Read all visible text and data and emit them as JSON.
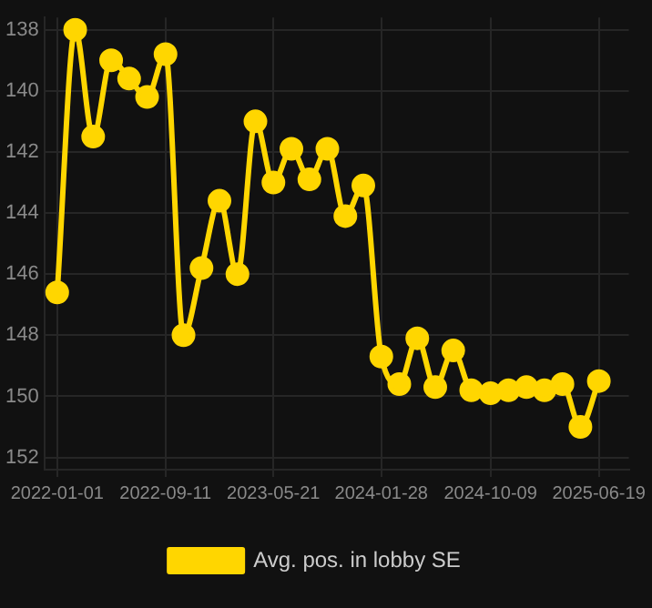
{
  "chart_data": {
    "type": "line",
    "x": [
      "2022-01-01",
      "2022-02-12",
      "2022-03-26",
      "2022-05-07",
      "2022-06-18",
      "2022-07-30",
      "2022-09-11",
      "2022-10-23",
      "2022-12-04",
      "2023-01-15",
      "2023-02-26",
      "2023-04-09",
      "2023-05-21",
      "2023-07-02",
      "2023-08-13",
      "2023-09-24",
      "2023-11-05",
      "2023-12-17",
      "2024-01-28",
      "2024-03-10",
      "2024-04-21",
      "2024-06-02",
      "2024-07-14",
      "2024-08-25",
      "2024-10-09",
      "2024-11-20",
      "2025-01-01",
      "2025-02-12",
      "2025-03-26",
      "2025-05-07",
      "2025-06-19"
    ],
    "series": [
      {
        "name": "Avg. pos. in lobby SE",
        "color": "#ffd600",
        "values": [
          146.6,
          138.0,
          141.5,
          139.0,
          139.6,
          140.2,
          138.8,
          148.0,
          145.8,
          143.6,
          146.0,
          141.0,
          143.0,
          141.9,
          142.9,
          141.9,
          144.1,
          143.1,
          148.7,
          149.6,
          148.1,
          149.7,
          148.5,
          149.8,
          149.9,
          149.8,
          149.7,
          149.8,
          149.6,
          151.0,
          149.5
        ]
      }
    ],
    "xlim": [
      "2021-12-02",
      "2025-08-28"
    ],
    "xticks": [
      "2022-01-01",
      "2022-09-11",
      "2023-05-21",
      "2024-01-28",
      "2024-10-09",
      "2025-06-19"
    ],
    "ylim": [
      152.4,
      137.6
    ],
    "yticks": [
      138,
      140,
      142,
      144,
      146,
      148,
      150,
      152
    ],
    "grid": true,
    "legend": "bottom",
    "marker": "circle",
    "line_style": "solid"
  }
}
